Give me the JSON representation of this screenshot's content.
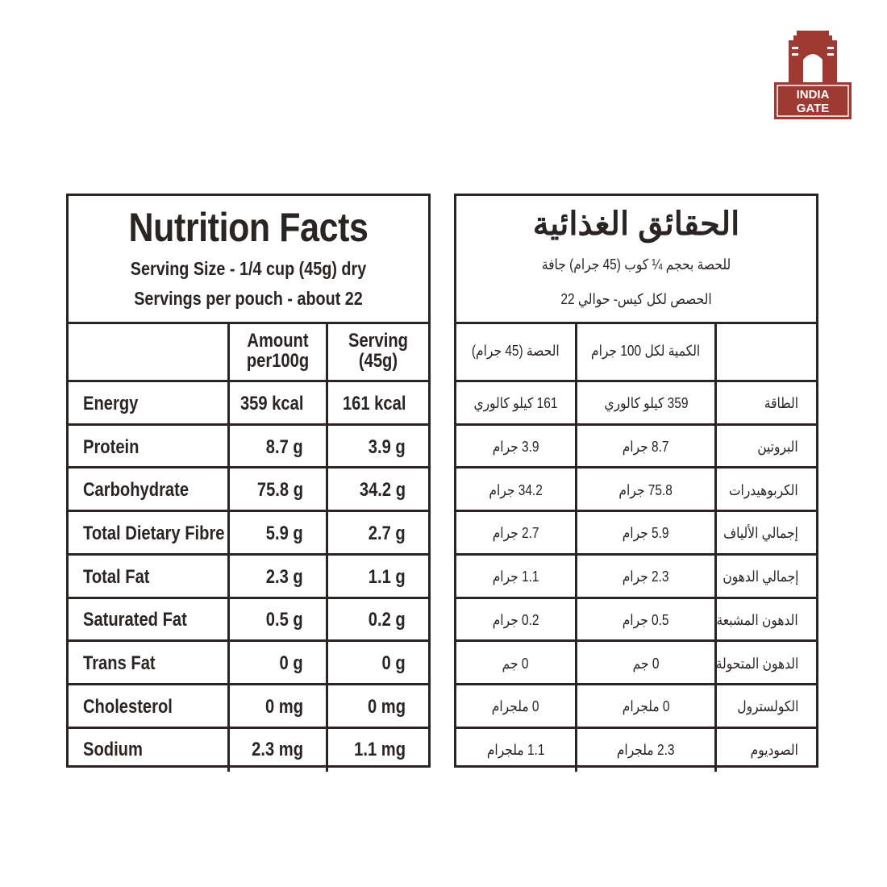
{
  "logo": {
    "line1": "INDIA",
    "line2": "GATE",
    "brand_color": "#9e3a32"
  },
  "english": {
    "title": "Nutrition Facts",
    "serving_size": "Serving Size - 1/4 cup (45g) dry",
    "servings_per": "Servings per pouch - about 22",
    "col_per100": "Amount per100g",
    "col_serving": "Serving (45g)",
    "rows": [
      {
        "label": "Energy",
        "per100": "359 kcal",
        "serving": "161 kcal"
      },
      {
        "label": "Protein",
        "per100": "8.7 g",
        "serving": "3.9 g"
      },
      {
        "label": "Carbohydrate",
        "per100": "75.8 g",
        "serving": "34.2 g"
      },
      {
        "label": "Total Dietary Fibre",
        "per100": "5.9 g",
        "serving": "2.7 g"
      },
      {
        "label": "Total Fat",
        "per100": "2.3 g",
        "serving": "1.1 g"
      },
      {
        "label": "Saturated Fat",
        "per100": "0.5 g",
        "serving": "0.2 g"
      },
      {
        "label": "Trans Fat",
        "per100": "0 g",
        "serving": "0 g"
      },
      {
        "label": "Cholesterol",
        "per100": "0 mg",
        "serving": "0 mg"
      },
      {
        "label": "Sodium",
        "per100": "2.3 mg",
        "serving": "1.1 mg"
      }
    ]
  },
  "arabic": {
    "title": "الحقائق الغذائية",
    "serving_size": "للحصة بحجم ¼ كوب (45 جرام) جافة",
    "servings_per": "الحصص لكل كيس- حوالي 22",
    "col_serving": "الحصة (45 جرام)",
    "col_per100": "الكمية لكل 100 جرام",
    "rows": [
      {
        "label": "الطاقة",
        "per100": "359 كيلو كالوري",
        "serving": "161 كيلو كالوري"
      },
      {
        "label": "البروتين",
        "per100": "8.7 جرام",
        "serving": "3.9 جرام"
      },
      {
        "label": "الكربوهيدرات",
        "per100": "75.8 جرام",
        "serving": "34.2 جرام"
      },
      {
        "label": "إجمالي الألياف",
        "per100": "5.9 جرام",
        "serving": "2.7 جرام"
      },
      {
        "label": "إجمالي الدهون",
        "per100": "2.3 جرام",
        "serving": "1.1 جرام"
      },
      {
        "label": "الدهون المشبعة",
        "per100": "0.5 جرام",
        "serving": "0.2 جرام"
      },
      {
        "label": "الدهون المتحولة",
        "per100": "0 جم",
        "serving": "0 جم"
      },
      {
        "label": "الكولسترول",
        "per100": "0 ملجرام",
        "serving": "0 ملجرام"
      },
      {
        "label": "الصوديوم",
        "per100": "2.3 ملجرام",
        "serving": "1.1 ملجرام"
      }
    ]
  }
}
